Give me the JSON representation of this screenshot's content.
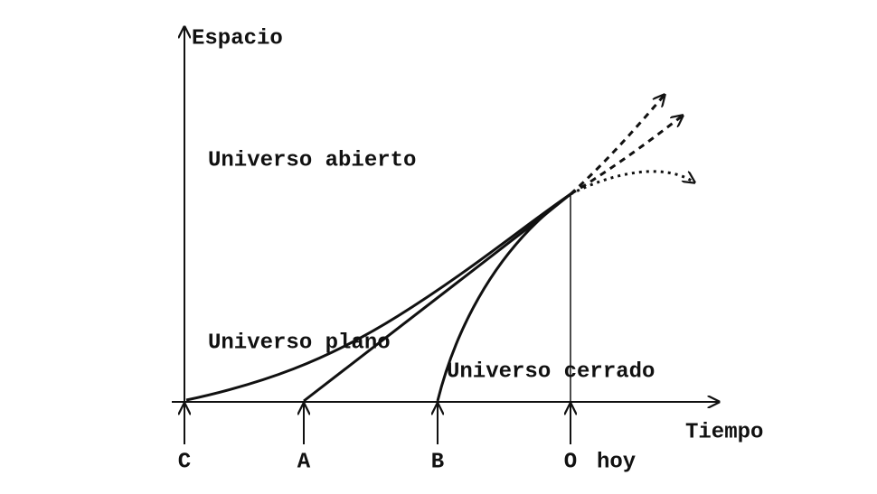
{
  "axes": {
    "y_label": "Espacio",
    "x_label": "Tiempo"
  },
  "curves": {
    "open": "Universo abierto",
    "flat": "Universo plano",
    "closed": "Universo cerrado"
  },
  "time_points": [
    "C",
    "A",
    "B",
    "O"
  ],
  "today": "hoy"
}
